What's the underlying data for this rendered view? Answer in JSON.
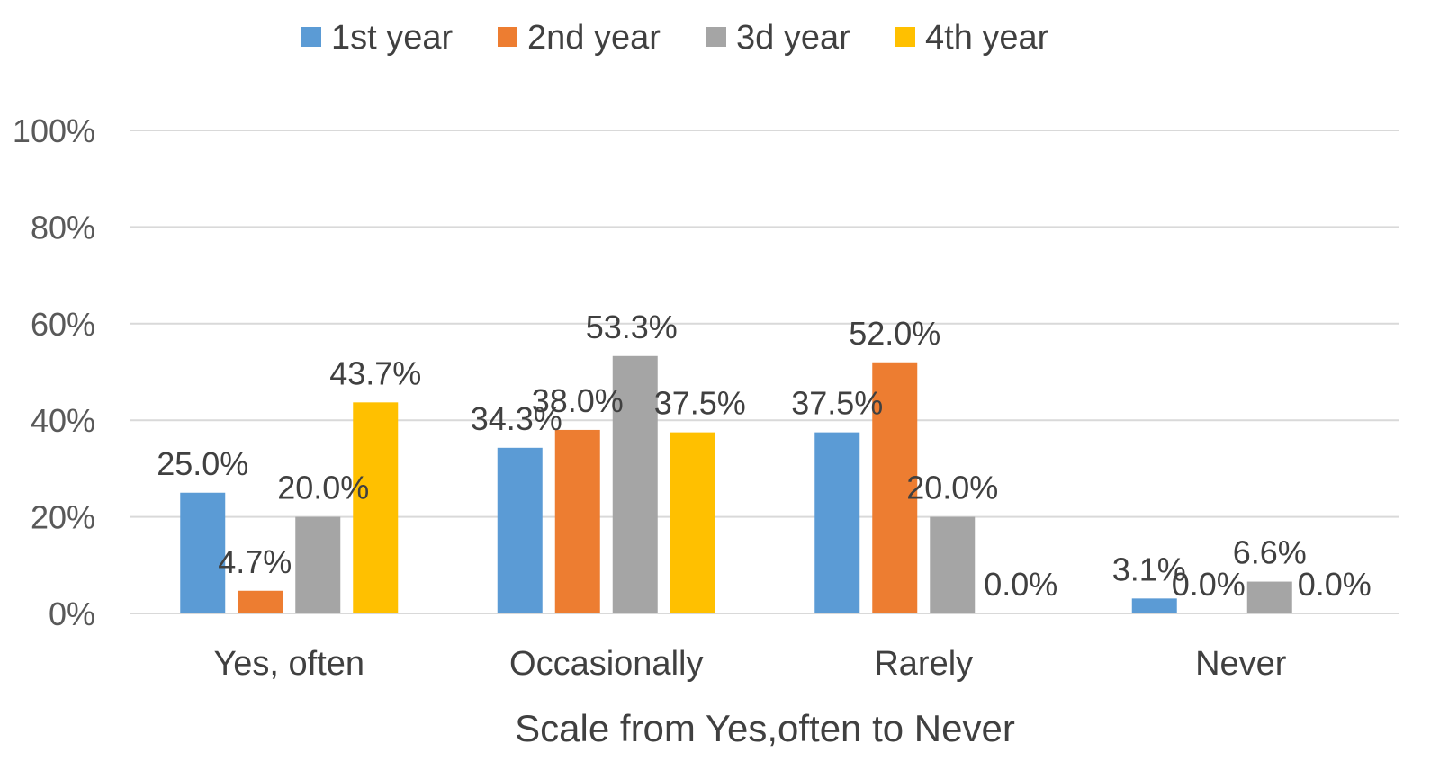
{
  "chart_data": {
    "type": "bar",
    "title": "",
    "xlabel": "Scale from Yes,often to Never",
    "ylabel": "",
    "categories": [
      "Yes, often",
      "Occasionally",
      "Rarely",
      "Never"
    ],
    "series": [
      {
        "name": "1st year",
        "color": "#5b9bd5",
        "values": [
          25.0,
          34.3,
          37.5,
          3.1
        ],
        "labels": [
          "25.0%",
          "34.3%",
          "37.5%",
          "3.1%"
        ]
      },
      {
        "name": "2nd year",
        "color": "#ed7d31",
        "values": [
          4.7,
          38.0,
          52.0,
          0.0
        ],
        "labels": [
          "4.7%",
          "38.0%",
          "52.0%",
          "0.0%"
        ]
      },
      {
        "name": "3d year",
        "color": "#a5a5a5",
        "values": [
          20.0,
          53.3,
          20.0,
          6.6
        ],
        "labels": [
          "20.0%",
          "53.3%",
          "20.0%",
          "6.6%"
        ]
      },
      {
        "name": "4th year",
        "color": "#ffc000",
        "values": [
          43.7,
          37.5,
          0.0,
          0.0
        ],
        "labels": [
          "43.7%",
          "37.5%",
          "0.0%",
          "0.0%"
        ]
      }
    ],
    "ylim": [
      0,
      100
    ],
    "yticks": [
      0,
      20,
      40,
      60,
      80,
      100
    ],
    "ytick_labels": [
      "0%",
      "20%",
      "40%",
      "60%",
      "80%",
      "100%"
    ],
    "grid": true,
    "legend_position": "top"
  }
}
